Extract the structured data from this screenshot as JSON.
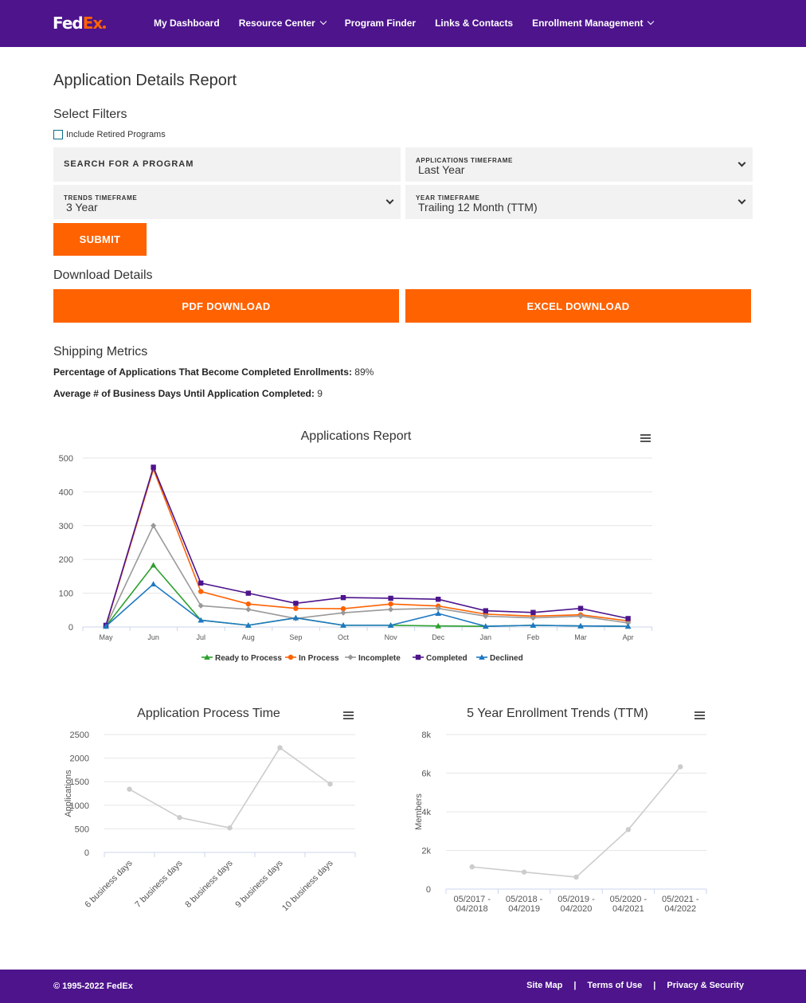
{
  "header": {
    "logo_fed": "Fed",
    "logo_ex": "Ex",
    "nav": [
      {
        "label": "My Dashboard",
        "dropdown": false
      },
      {
        "label": "Resource Center",
        "dropdown": true
      },
      {
        "label": "Program Finder",
        "dropdown": false
      },
      {
        "label": "Links & Contacts",
        "dropdown": false
      },
      {
        "label": "Enrollment Management",
        "dropdown": true
      }
    ]
  },
  "page_title": "Application Details Report",
  "filters": {
    "heading": "Select Filters",
    "retired_label": "Include Retired Programs",
    "retired_checked": false,
    "search_placeholder": "SEARCH FOR A PROGRAM",
    "applications_timeframe_label": "APPLICATIONS TIMEFRAME",
    "applications_timeframe_value": "Last Year",
    "trends_timeframe_label": "TRENDS TIMEFRAME",
    "trends_timeframe_value": "3 Year",
    "year_timeframe_label": "YEAR TIMEFRAME",
    "year_timeframe_value": "Trailing 12 Month (TTM)",
    "submit_label": "SUBMIT"
  },
  "download": {
    "heading": "Download Details",
    "pdf_label": "PDF DOWNLOAD",
    "excel_label": "EXCEL DOWNLOAD"
  },
  "metrics": {
    "heading": "Shipping Metrics",
    "pct_label": "Percentage of Applications That Become Completed Enrollments:",
    "pct_value": "89%",
    "days_label": "Average # of Business Days Until Application Completed:",
    "days_value": "9"
  },
  "colors": {
    "brand_purple": "#4d148c",
    "brand_orange": "#ff6200"
  },
  "chart_data": [
    {
      "type": "line",
      "title": "Applications Report",
      "categories": [
        "May",
        "Jun",
        "Jul",
        "Aug",
        "Sep",
        "Oct",
        "Nov",
        "Dec",
        "Jan",
        "Feb",
        "Mar",
        "Apr"
      ],
      "ylim": [
        0,
        500
      ],
      "yticks": [
        0,
        100,
        200,
        300,
        400,
        500
      ],
      "legend_position": "bottom",
      "series": [
        {
          "name": "Ready to Process",
          "color": "#2ca02c",
          "marker": "triangle",
          "values": [
            2,
            183,
            20,
            5,
            27,
            5,
            5,
            3,
            2,
            5,
            3,
            2
          ]
        },
        {
          "name": "In Process",
          "color": "#ff6200",
          "marker": "circle",
          "values": [
            3,
            467,
            105,
            68,
            55,
            54,
            68,
            62,
            38,
            32,
            36,
            18
          ]
        },
        {
          "name": "Incomplete",
          "color": "#999999",
          "marker": "diamond",
          "values": [
            2,
            300,
            63,
            52,
            25,
            42,
            52,
            55,
            32,
            27,
            32,
            12
          ]
        },
        {
          "name": "Completed",
          "color": "#4d148c",
          "marker": "square",
          "values": [
            5,
            473,
            130,
            100,
            70,
            87,
            85,
            82,
            48,
            43,
            55,
            25
          ]
        },
        {
          "name": "Declined",
          "color": "#1f78c1",
          "marker": "triangle",
          "values": [
            2,
            127,
            20,
            5,
            27,
            5,
            5,
            40,
            2,
            5,
            3,
            2
          ]
        }
      ]
    },
    {
      "type": "line",
      "title": "Application Process Time",
      "ylabel": "Applications",
      "categories": [
        "6 business days",
        "7 business days",
        "8 business days",
        "9 business days",
        "10 business days"
      ],
      "ylim": [
        0,
        2500
      ],
      "yticks": [
        0,
        500,
        1000,
        1500,
        2000,
        2500
      ],
      "series": [
        {
          "values": [
            1340,
            740,
            520,
            2220,
            1450
          ]
        }
      ]
    },
    {
      "type": "line",
      "title": "5 Year Enrollment Trends (TTM)",
      "ylabel": "Members",
      "categories": [
        "05/2017 - 04/2018",
        "05/2018 - 04/2019",
        "05/2019 - 04/2020",
        "05/2020 - 04/2021",
        "05/2021 - 04/2022"
      ],
      "ylim": [
        0,
        8000
      ],
      "yticks": [
        0,
        2000,
        4000,
        6000,
        8000
      ],
      "ytick_labels": [
        "0",
        "2k",
        "4k",
        "6k",
        "8k"
      ],
      "series": [
        {
          "values": [
            1150,
            880,
            620,
            3080,
            6330
          ]
        }
      ]
    }
  ],
  "footer": {
    "copyright": "© 1995-2022 FedEx",
    "links": [
      "Site Map",
      "Terms of Use",
      "Privacy & Security"
    ],
    "separator": "|"
  }
}
